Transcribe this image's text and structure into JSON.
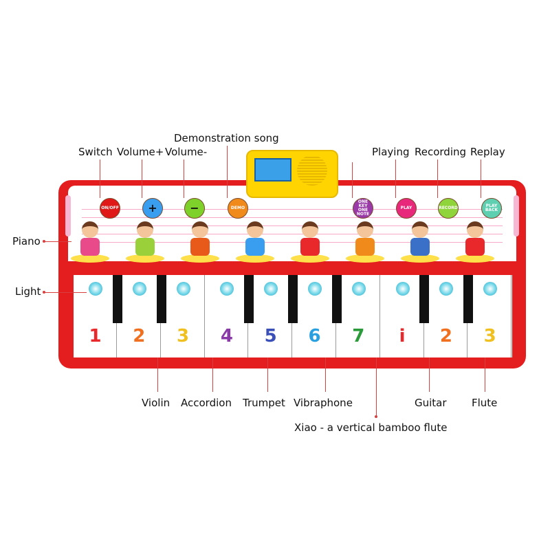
{
  "labels": {
    "switch": "Switch",
    "volume_up": "Volume+",
    "volume_down": "Volume-",
    "demo": "Demonstration song",
    "playing": "Playing",
    "recording": "Recording",
    "replay": "Replay",
    "piano": "Piano",
    "light": "Light",
    "violin": "Violin",
    "accordion": "Accordion",
    "trumpet": "Trumpet",
    "vibraphone": "Vibraphone",
    "xiao": "Xiao - a vertical bamboo flute",
    "guitar": "Guitar",
    "flute": "Flute"
  },
  "buttons": [
    {
      "text": "ON/OFF",
      "color": "#e01818"
    },
    {
      "text": "+",
      "color": "#3a9ef0"
    },
    {
      "text": "−",
      "color": "#7ed12a"
    },
    {
      "text": "DEMO",
      "color": "#f08a1a"
    },
    {
      "text": "ONE KEY ONE NOTE",
      "color": "#9a3aa8"
    },
    {
      "text": "PLAY",
      "color": "#e8287a"
    },
    {
      "text": "RECORD",
      "color": "#8ed43a"
    },
    {
      "text": "PLAY BACK",
      "color": "#5ecfb0"
    }
  ],
  "keys": [
    {
      "n": "1",
      "c": "#e8282a"
    },
    {
      "n": "2",
      "c": "#f07020"
    },
    {
      "n": "3",
      "c": "#f0c020"
    },
    {
      "n": "4",
      "c": "#8a3aa8"
    },
    {
      "n": "5",
      "c": "#3a50b8"
    },
    {
      "n": "6",
      "c": "#2aa0e0"
    },
    {
      "n": "7",
      "c": "#2a9a3a"
    },
    {
      "n": "i",
      "c": "#e8282a"
    },
    {
      "n": "2",
      "c": "#f07020"
    },
    {
      "n": "3",
      "c": "#f0c020"
    }
  ]
}
